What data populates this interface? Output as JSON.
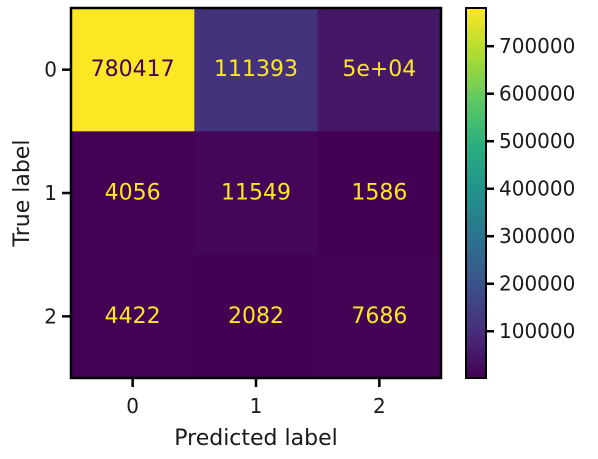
{
  "chart_data": {
    "type": "heatmap",
    "xlabel": "Predicted label",
    "ylabel": "True label",
    "x_categories": [
      "0",
      "1",
      "2"
    ],
    "y_categories": [
      "0",
      "1",
      "2"
    ],
    "values": [
      [
        780417,
        111393,
        50000
      ],
      [
        4056,
        11549,
        1586
      ],
      [
        4422,
        2082,
        7686
      ]
    ],
    "cell_labels": [
      [
        "780417",
        "111393",
        "5e+04"
      ],
      [
        "4056",
        "11549",
        "1586"
      ],
      [
        "4422",
        "2082",
        "7686"
      ]
    ],
    "colormap": "viridis",
    "text_color_light": "#FDE725",
    "text_color_dark": "#440154",
    "colorbar": {
      "ticks": [
        100000,
        200000,
        300000,
        400000,
        500000,
        600000,
        700000
      ],
      "tick_labels": [
        "100000",
        "200000",
        "300000",
        "400000",
        "500000",
        "600000",
        "700000"
      ]
    },
    "legend": "colorbar-right",
    "grid": false
  }
}
